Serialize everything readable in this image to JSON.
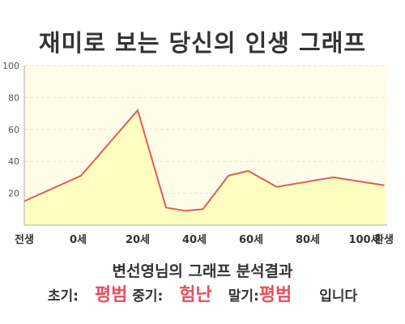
{
  "title": "재미로 보는 당신의 인생 그래프",
  "chart_data": {
    "type": "area",
    "x_labels": [
      "전생",
      "0세",
      "20세",
      "40세",
      "60세",
      "80세",
      "100세",
      "환생"
    ],
    "points": [
      {
        "x": -20,
        "y": 15
      },
      {
        "x": 0,
        "y": 31
      },
      {
        "x": 20,
        "y": 72
      },
      {
        "x": 30,
        "y": 11
      },
      {
        "x": 37,
        "y": 9
      },
      {
        "x": 43,
        "y": 10
      },
      {
        "x": 52,
        "y": 31
      },
      {
        "x": 59,
        "y": 34
      },
      {
        "x": 69,
        "y": 24
      },
      {
        "x": 89,
        "y": 30
      },
      {
        "x": 107,
        "y": 25
      }
    ],
    "xlim": [
      -20,
      108
    ],
    "x_tick_positions": [
      -20,
      -1,
      20,
      40,
      60,
      80,
      100,
      117
    ],
    "ylim": [
      0,
      100
    ],
    "y_ticks": [
      20,
      40,
      60,
      80,
      100
    ],
    "grid": true,
    "line_color": "#e05a5a",
    "fill_color": "#ffffc0",
    "plot_bg": "#fffde8"
  },
  "summary": {
    "heading": "변선영님의 그래프 분석결과",
    "early_label": "초기:",
    "early_value": "평범",
    "middle_label": "중기:",
    "middle_value": "험난",
    "late_label": "말기:",
    "late_value": "평범",
    "ending": "입니다"
  }
}
